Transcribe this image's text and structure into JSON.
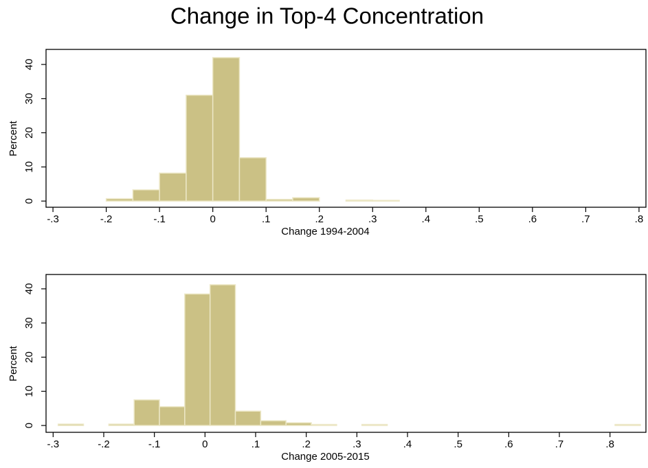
{
  "title": "Change in Top-4 Concentration",
  "chart_data": [
    {
      "type": "histogram",
      "xlabel": "Change 1994-2004",
      "ylabel": "Percent",
      "color": "#cbc185",
      "bins": [
        -0.2,
        -0.15,
        -0.1,
        -0.05,
        0,
        0.05,
        0.1,
        0.15,
        0.2,
        0.25,
        0.3,
        0.35
      ],
      "values": [
        0.7,
        3.3,
        8.2,
        31,
        42,
        12.7,
        0.5,
        1.0,
        0,
        0.3,
        0.2
      ],
      "xlim": [
        -0.313,
        0.813
      ],
      "ylim": [
        -1.8,
        44.4
      ],
      "xticks": [
        {
          "value": -0.3,
          "label": "-.3"
        },
        {
          "value": -0.2,
          "label": "-.2"
        },
        {
          "value": -0.1,
          "label": "-.1"
        },
        0,
        {
          "value": 0.1,
          "label": ".1"
        },
        {
          "value": 0.2,
          "label": ".2"
        },
        {
          "value": 0.3,
          "label": ".3"
        },
        {
          "value": 0.4,
          "label": ".4"
        },
        {
          "value": 0.5,
          "label": ".5"
        },
        {
          "value": 0.6,
          "label": ".6"
        },
        {
          "value": 0.7,
          "label": ".7"
        },
        {
          "value": 0.8,
          "label": ".8"
        }
      ],
      "yticks": [
        0,
        10,
        20,
        30,
        40
      ]
    },
    {
      "type": "histogram",
      "xlabel": "Change 2005-2015",
      "ylabel": "Percent",
      "color": "#cbc185",
      "bins": [
        -0.29,
        -0.24,
        -0.19,
        -0.14,
        -0.09,
        -0.04,
        0.01,
        0.06,
        0.11,
        0.16,
        0.21,
        0.26,
        0.31,
        0.36,
        0.41,
        0.46,
        0.51,
        0.56,
        0.61,
        0.66,
        0.71,
        0.76,
        0.81,
        0.86
      ],
      "values": [
        0.4,
        0,
        0.4,
        7.5,
        5.5,
        38.5,
        41.2,
        4.2,
        1.4,
        0.8,
        0.3,
        0,
        0.3,
        0,
        0,
        0,
        0,
        0,
        0,
        0,
        0,
        0,
        0.3
      ],
      "xlim": [
        -0.314,
        0.871
      ],
      "ylim": [
        -2.0,
        44.2
      ],
      "xticks": [
        {
          "value": -0.3,
          "label": "-.3"
        },
        {
          "value": -0.2,
          "label": "-.2"
        },
        {
          "value": -0.1,
          "label": "-.1"
        },
        0,
        {
          "value": 0.1,
          "label": ".1"
        },
        {
          "value": 0.2,
          "label": ".2"
        },
        {
          "value": 0.3,
          "label": ".3"
        },
        {
          "value": 0.4,
          "label": ".4"
        },
        {
          "value": 0.5,
          "label": ".5"
        },
        {
          "value": 0.6,
          "label": ".6"
        },
        {
          "value": 0.7,
          "label": ".7"
        },
        {
          "value": 0.8,
          "label": ".8"
        }
      ],
      "yticks": [
        0,
        10,
        20,
        30,
        40
      ]
    }
  ]
}
